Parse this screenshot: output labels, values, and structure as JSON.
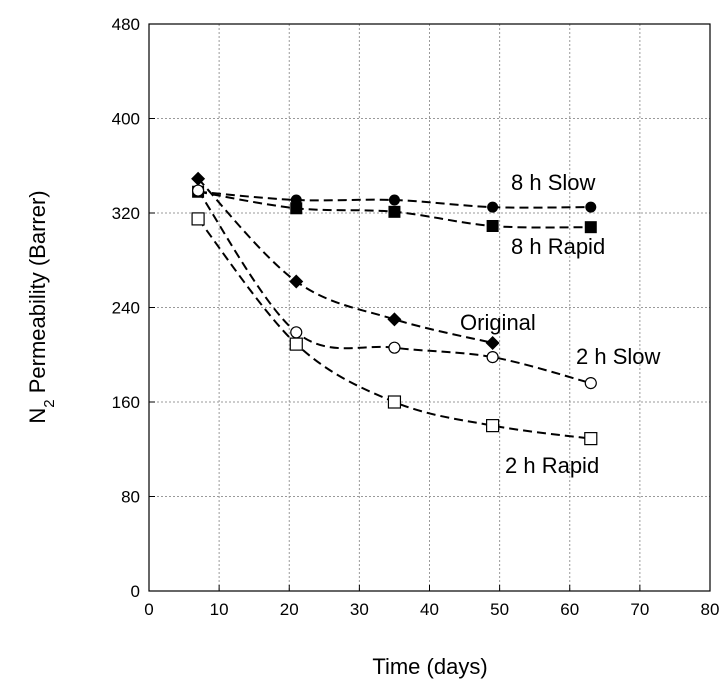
{
  "chart_data": {
    "type": "scatter",
    "title": "",
    "xlabel": "Time (days)",
    "ylabel": {
      "base": "N",
      "subscript": "2",
      "rest": " Permeability (Barrer)"
    },
    "xlim": [
      0,
      80
    ],
    "ylim": [
      0,
      480
    ],
    "xticks": [
      "0",
      "10",
      "20",
      "30",
      "40",
      "50",
      "60",
      "70",
      "80"
    ],
    "yticks": [
      "0",
      "80",
      "160",
      "240",
      "320",
      "400",
      "480"
    ],
    "grid": true,
    "legend": "none",
    "line_style": "dashed",
    "series": [
      {
        "name": "8 h Slow",
        "marker": "filled-circle",
        "x": [
          7,
          21,
          35,
          49,
          63
        ],
        "y": [
          338,
          331,
          331,
          325,
          325
        ]
      },
      {
        "name": "8 h Rapid",
        "marker": "filled-square",
        "x": [
          7,
          21,
          35,
          49,
          63
        ],
        "y": [
          338,
          324,
          321,
          309,
          308
        ]
      },
      {
        "name": "Original",
        "marker": "filled-diamond",
        "x": [
          7,
          21,
          35,
          49
        ],
        "y": [
          349,
          262,
          230,
          210
        ]
      },
      {
        "name": "2 h Slow",
        "marker": "open-circle",
        "x": [
          7,
          21,
          35,
          49,
          63
        ],
        "y": [
          339,
          219,
          206,
          198,
          176
        ]
      },
      {
        "name": "2 h Rapid",
        "marker": "open-square",
        "x": [
          7,
          21,
          35,
          49,
          63
        ],
        "y": [
          315,
          209,
          160,
          140,
          129
        ]
      }
    ]
  }
}
